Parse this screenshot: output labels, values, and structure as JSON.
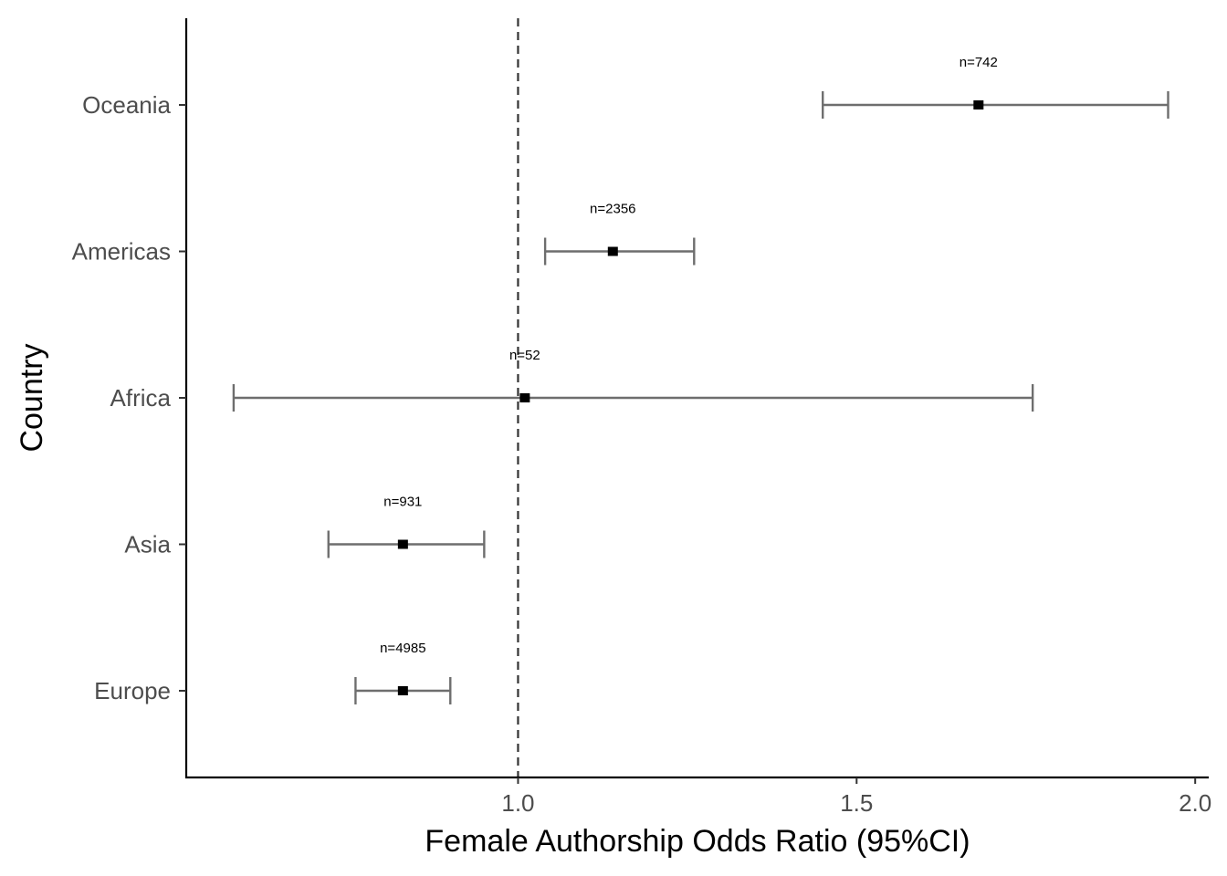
{
  "chart_data": {
    "type": "forest",
    "xlabel": "Female Authorship Odds Ratio (95%CI)",
    "ylabel": "Country",
    "xlim": [
      0.51,
      2.02
    ],
    "x_ticks": [
      1.0,
      1.5,
      2.0
    ],
    "x_tick_labels": [
      "1.0",
      "1.5",
      "2.0"
    ],
    "reference_line": 1.0,
    "categories": [
      "Oceania",
      "Americas",
      "Africa",
      "Asia",
      "Europe"
    ],
    "estimates": [
      1.68,
      1.14,
      1.01,
      0.83,
      0.83
    ],
    "ci_low": [
      1.45,
      1.04,
      0.58,
      0.72,
      0.76
    ],
    "ci_high": [
      1.96,
      1.26,
      1.76,
      0.95,
      0.9
    ],
    "n_labels": [
      "n=742",
      "n=2356",
      "n=52",
      "n=931",
      "n=4985"
    ],
    "grid": false,
    "legend": "none"
  }
}
